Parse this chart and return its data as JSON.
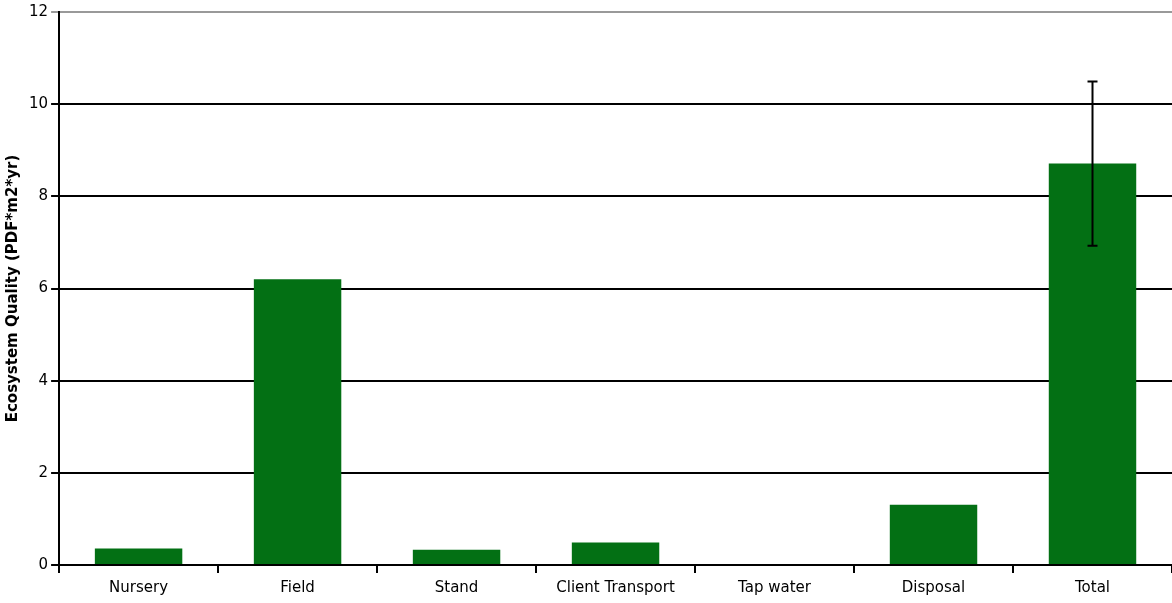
{
  "chart_data": {
    "type": "bar",
    "ylabel": "Ecosystem Quality (PDF*m2*yr)",
    "categories": [
      "Nursery",
      "Field",
      "Stand",
      "Client Transport",
      "Tap water",
      "Disposal",
      "Total"
    ],
    "values": [
      0.36,
      6.2,
      0.33,
      0.49,
      0,
      1.31,
      8.71
    ],
    "errors": [
      null,
      null,
      null,
      null,
      null,
      null,
      [
        6.93,
        10.49
      ]
    ],
    "color": "#037014",
    "ylim": [
      0,
      12
    ],
    "yticks": [
      0,
      2,
      4,
      6,
      8,
      10,
      12
    ],
    "grid": "y",
    "legend": false
  }
}
